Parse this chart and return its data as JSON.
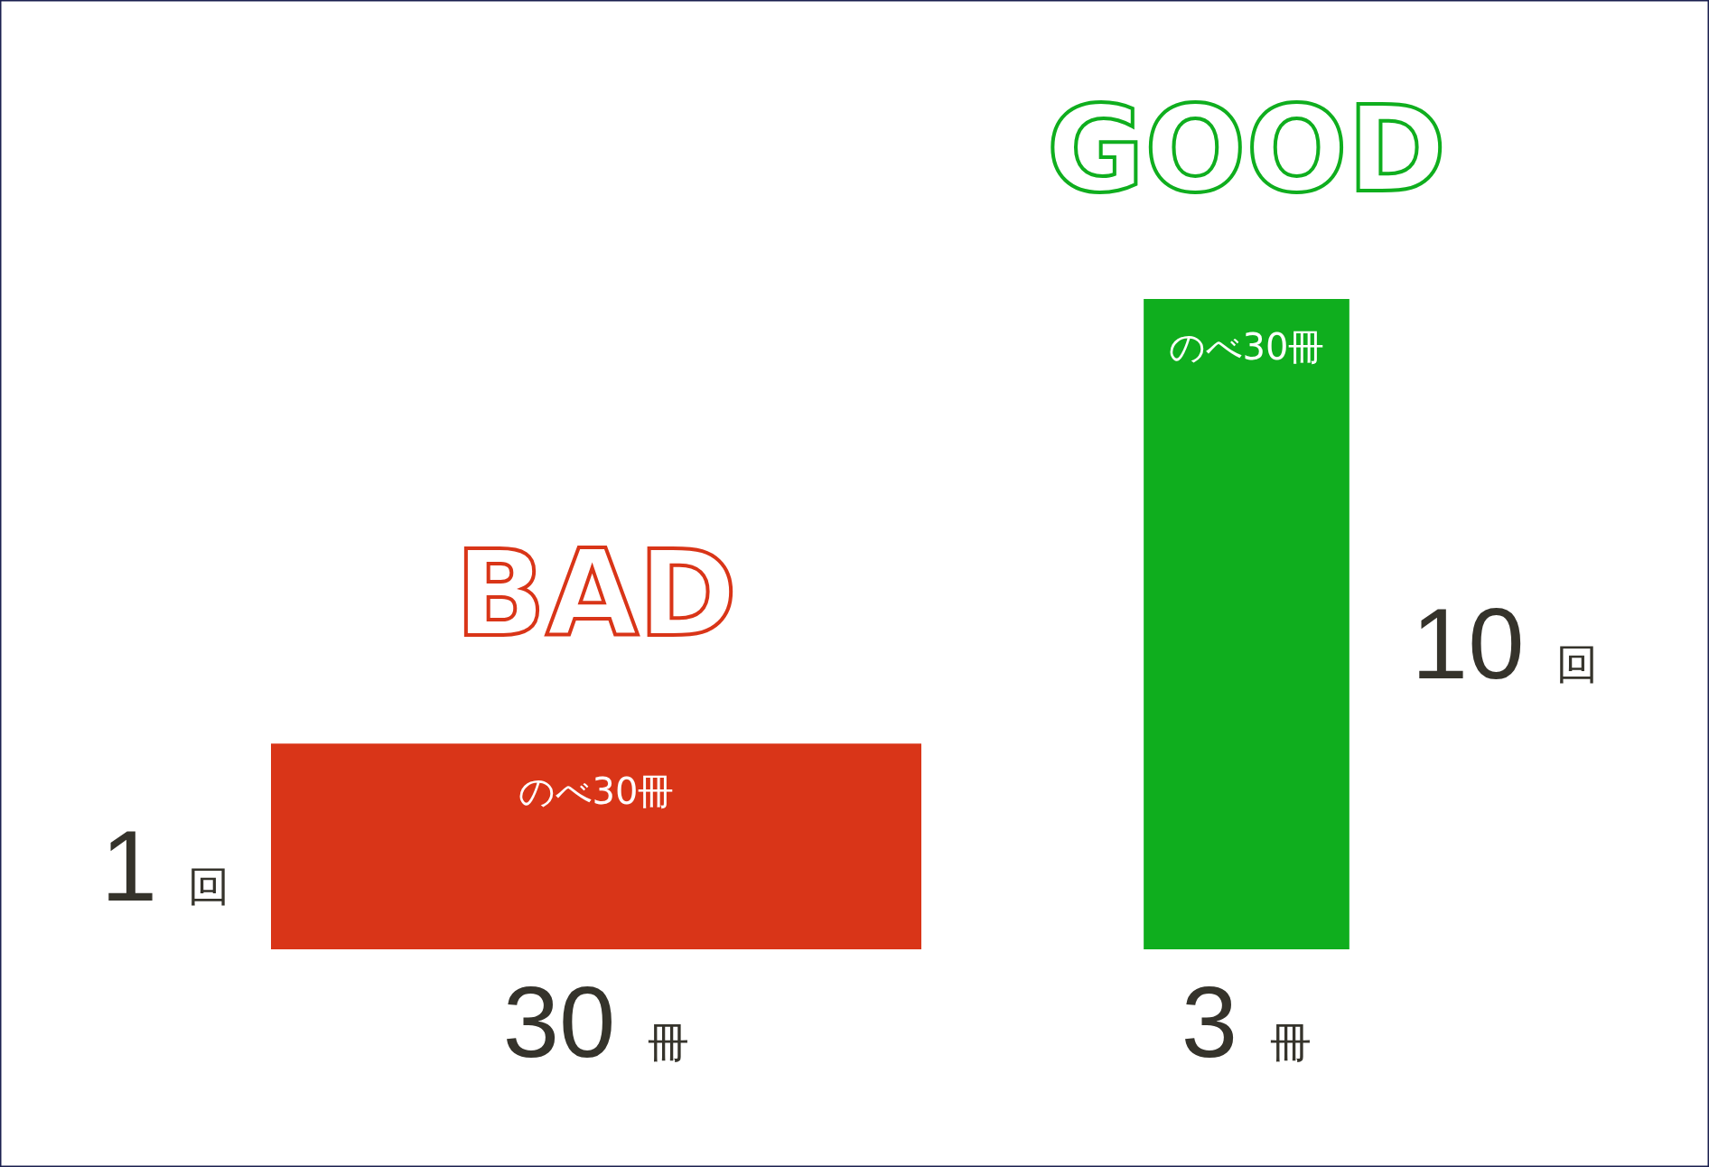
{
  "chart_data": {
    "type": "other",
    "categories": [
      "BAD",
      "GOOD"
    ],
    "colors": [
      "#d93518",
      "#0fae1e"
    ],
    "series": [
      {
        "name": "冊",
        "values": [
          30,
          3
        ]
      },
      {
        "name": "回",
        "values": [
          1,
          10
        ]
      }
    ],
    "data_labels": true,
    "annotations": [
      {
        "text": "のべ30冊",
        "x": "BAD"
      },
      {
        "text": "のべ30冊",
        "x": "GOOD"
      }
    ]
  }
}
